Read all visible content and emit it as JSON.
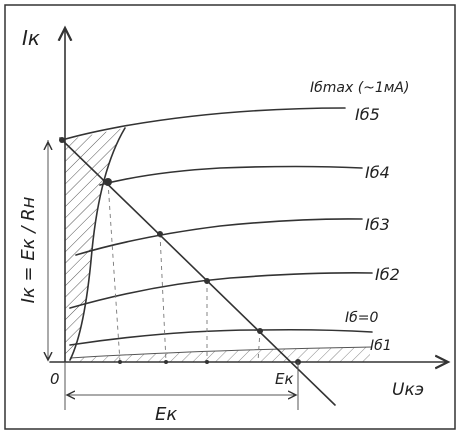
{
  "axes": {
    "y_label": "Iк",
    "x_label": "Uкэ",
    "origin": "0",
    "x_mark": "Eк"
  },
  "dimension": {
    "label": "Eк"
  },
  "side_label": "Iк = Eк / Rн",
  "curves": [
    {
      "label": "Iбmax (~1мА)"
    },
    {
      "label": "Iб5"
    },
    {
      "label": "Iб4"
    },
    {
      "label": "Iб3"
    },
    {
      "label": "Iб2"
    },
    {
      "label": "Iб=0"
    },
    {
      "label": "Iб1"
    }
  ]
}
